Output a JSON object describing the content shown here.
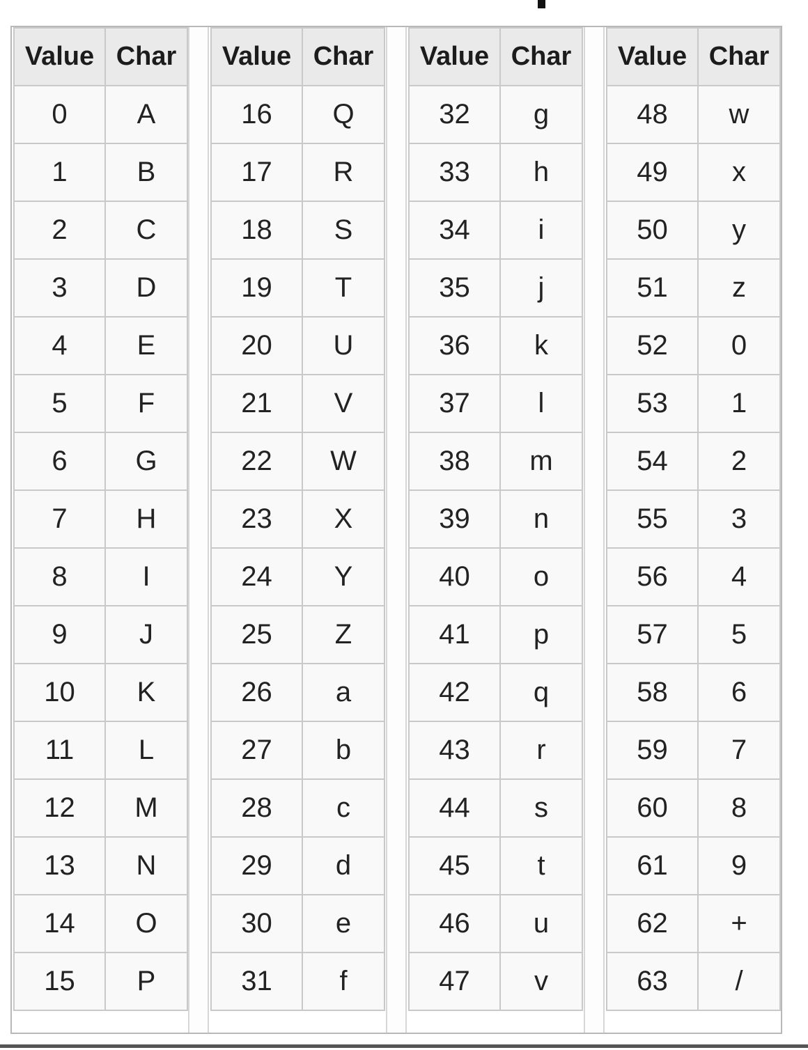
{
  "table": {
    "header": {
      "value": "Value",
      "char": "Char"
    },
    "groups": [
      {
        "rows": [
          {
            "value": "0",
            "char": "A"
          },
          {
            "value": "1",
            "char": "B"
          },
          {
            "value": "2",
            "char": "C"
          },
          {
            "value": "3",
            "char": "D"
          },
          {
            "value": "4",
            "char": "E"
          },
          {
            "value": "5",
            "char": "F"
          },
          {
            "value": "6",
            "char": "G"
          },
          {
            "value": "7",
            "char": "H"
          },
          {
            "value": "8",
            "char": "I"
          },
          {
            "value": "9",
            "char": "J"
          },
          {
            "value": "10",
            "char": "K"
          },
          {
            "value": "11",
            "char": "L"
          },
          {
            "value": "12",
            "char": "M"
          },
          {
            "value": "13",
            "char": "N"
          },
          {
            "value": "14",
            "char": "O"
          },
          {
            "value": "15",
            "char": "P"
          }
        ]
      },
      {
        "rows": [
          {
            "value": "16",
            "char": "Q"
          },
          {
            "value": "17",
            "char": "R"
          },
          {
            "value": "18",
            "char": "S"
          },
          {
            "value": "19",
            "char": "T"
          },
          {
            "value": "20",
            "char": "U"
          },
          {
            "value": "21",
            "char": "V"
          },
          {
            "value": "22",
            "char": "W"
          },
          {
            "value": "23",
            "char": "X"
          },
          {
            "value": "24",
            "char": "Y"
          },
          {
            "value": "25",
            "char": "Z"
          },
          {
            "value": "26",
            "char": "a"
          },
          {
            "value": "27",
            "char": "b"
          },
          {
            "value": "28",
            "char": "c"
          },
          {
            "value": "29",
            "char": "d"
          },
          {
            "value": "30",
            "char": "e"
          },
          {
            "value": "31",
            "char": "f"
          }
        ]
      },
      {
        "rows": [
          {
            "value": "32",
            "char": "g"
          },
          {
            "value": "33",
            "char": "h"
          },
          {
            "value": "34",
            "char": "i"
          },
          {
            "value": "35",
            "char": "j"
          },
          {
            "value": "36",
            "char": "k"
          },
          {
            "value": "37",
            "char": "l"
          },
          {
            "value": "38",
            "char": "m"
          },
          {
            "value": "39",
            "char": "n"
          },
          {
            "value": "40",
            "char": "o"
          },
          {
            "value": "41",
            "char": "p"
          },
          {
            "value": "42",
            "char": "q"
          },
          {
            "value": "43",
            "char": "r"
          },
          {
            "value": "44",
            "char": "s"
          },
          {
            "value": "45",
            "char": "t"
          },
          {
            "value": "46",
            "char": "u"
          },
          {
            "value": "47",
            "char": "v"
          }
        ]
      },
      {
        "rows": [
          {
            "value": "48",
            "char": "w"
          },
          {
            "value": "49",
            "char": "x"
          },
          {
            "value": "50",
            "char": "y"
          },
          {
            "value": "51",
            "char": "z"
          },
          {
            "value": "52",
            "char": "0"
          },
          {
            "value": "53",
            "char": "1"
          },
          {
            "value": "54",
            "char": "2"
          },
          {
            "value": "55",
            "char": "3"
          },
          {
            "value": "56",
            "char": "4"
          },
          {
            "value": "57",
            "char": "5"
          },
          {
            "value": "58",
            "char": "6"
          },
          {
            "value": "59",
            "char": "7"
          },
          {
            "value": "60",
            "char": "8"
          },
          {
            "value": "61",
            "char": "9"
          },
          {
            "value": "62",
            "char": "+"
          },
          {
            "value": "63",
            "char": "/"
          }
        ]
      }
    ]
  },
  "colors": {
    "header_bg": "#eaeaea",
    "cell_bg": "#f9f9f9",
    "border": "#c9c9c9",
    "text": "#222222"
  }
}
